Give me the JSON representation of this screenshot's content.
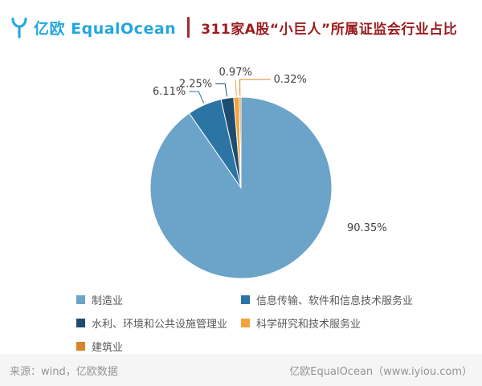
{
  "header": {
    "brand": "亿欧 EqualOcean",
    "title": "311家A股“小巨人”所属证监会行业占比"
  },
  "chart_data": {
    "type": "pie",
    "title": "311家A股“小巨人”所属证监会行业占比",
    "value_suffix": "%",
    "legend_position": "bottom",
    "start_angle": "top",
    "clockwise": true,
    "slices": [
      {
        "label": "制造业",
        "value": 90.35,
        "color": "#6BA3C9"
      },
      {
        "label": "信息传输、软件和信息技术服务业",
        "value": 6.11,
        "color": "#2C74A4"
      },
      {
        "label": "水利、环境和公共设施管理业",
        "value": 2.25,
        "color": "#1D4C70"
      },
      {
        "label": "科学研究和技术服务业",
        "value": 0.97,
        "color": "#F2A43A"
      },
      {
        "label": "建筑业",
        "value": 0.32,
        "color": "#DB8327"
      }
    ]
  },
  "footer": {
    "source": "来源：wind，亿欧数据",
    "credit": "亿欧EqualOcean（www.iyiou.com）"
  }
}
